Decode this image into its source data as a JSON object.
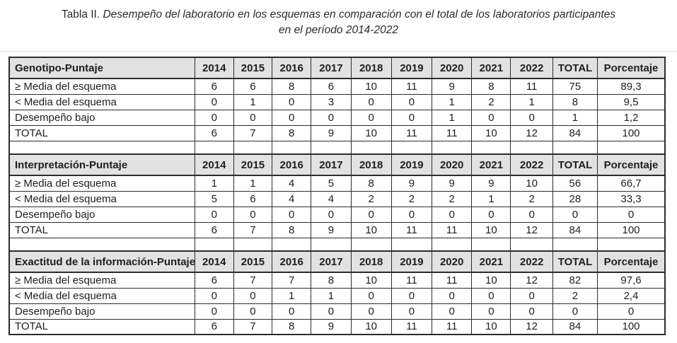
{
  "caption": {
    "prefix": "Tabla II.",
    "italic_line1": "Desempeño del laboratorio en los esquemas en comparación con el total de los laboratorios participantes",
    "italic_line2": "en el período 2014-2022"
  },
  "table": {
    "columns": [
      "2014",
      "2015",
      "2016",
      "2017",
      "2018",
      "2019",
      "2020",
      "2021",
      "2022",
      "TOTAL",
      "Porcentaje"
    ],
    "sections": [
      {
        "header": "Genotipo-Puntaje",
        "rows": [
          {
            "label": "≥ Media del esquema",
            "values": [
              "6",
              "6",
              "8",
              "6",
              "10",
              "11",
              "9",
              "8",
              "11",
              "75",
              "89,3"
            ]
          },
          {
            "label": "< Media del esquema",
            "values": [
              "0",
              "1",
              "0",
              "3",
              "0",
              "0",
              "1",
              "2",
              "1",
              "8",
              "9,5"
            ]
          },
          {
            "label": "Desempeño bajo",
            "values": [
              "0",
              "0",
              "0",
              "0",
              "0",
              "0",
              "1",
              "0",
              "0",
              "1",
              "1,2"
            ]
          },
          {
            "label": "TOTAL",
            "values": [
              "6",
              "7",
              "8",
              "9",
              "10",
              "11",
              "11",
              "10",
              "12",
              "84",
              "100"
            ]
          }
        ]
      },
      {
        "header": "Interpretación-Puntaje",
        "rows": [
          {
            "label": "≥ Media del esquema",
            "values": [
              "1",
              "1",
              "4",
              "5",
              "8",
              "9",
              "9",
              "9",
              "10",
              "56",
              "66,7"
            ]
          },
          {
            "label": "< Media del esquema",
            "values": [
              "5",
              "6",
              "4",
              "4",
              "2",
              "2",
              "2",
              "1",
              "2",
              "28",
              "33,3"
            ]
          },
          {
            "label": "Desempeño bajo",
            "values": [
              "0",
              "0",
              "0",
              "0",
              "0",
              "0",
              "0",
              "0",
              "0",
              "0",
              "0"
            ]
          },
          {
            "label": "TOTAL",
            "values": [
              "6",
              "7",
              "8",
              "9",
              "10",
              "11",
              "11",
              "10",
              "12",
              "84",
              "100"
            ]
          }
        ]
      },
      {
        "header": "Exactitud de la información-Puntaje",
        "rows": [
          {
            "label": "≥ Media del esquema",
            "values": [
              "6",
              "7",
              "7",
              "8",
              "10",
              "11",
              "11",
              "10",
              "12",
              "82",
              "97,6"
            ]
          },
          {
            "label": "< Media del esquema",
            "values": [
              "0",
              "0",
              "1",
              "1",
              "0",
              "0",
              "0",
              "0",
              "0",
              "2",
              "2,4"
            ]
          },
          {
            "label": "Desempeño bajo",
            "values": [
              "0",
              "0",
              "0",
              "0",
              "0",
              "0",
              "0",
              "0",
              "0",
              "0",
              "0"
            ]
          },
          {
            "label": "TOTAL",
            "values": [
              "6",
              "7",
              "8",
              "9",
              "10",
              "11",
              "11",
              "10",
              "12",
              "84",
              "100"
            ]
          }
        ]
      }
    ]
  },
  "colors": {
    "header_bg": "#e2e2e2",
    "border": "#2c2c2c",
    "text": "#1e1e1e",
    "page_divider": "#ededed"
  }
}
